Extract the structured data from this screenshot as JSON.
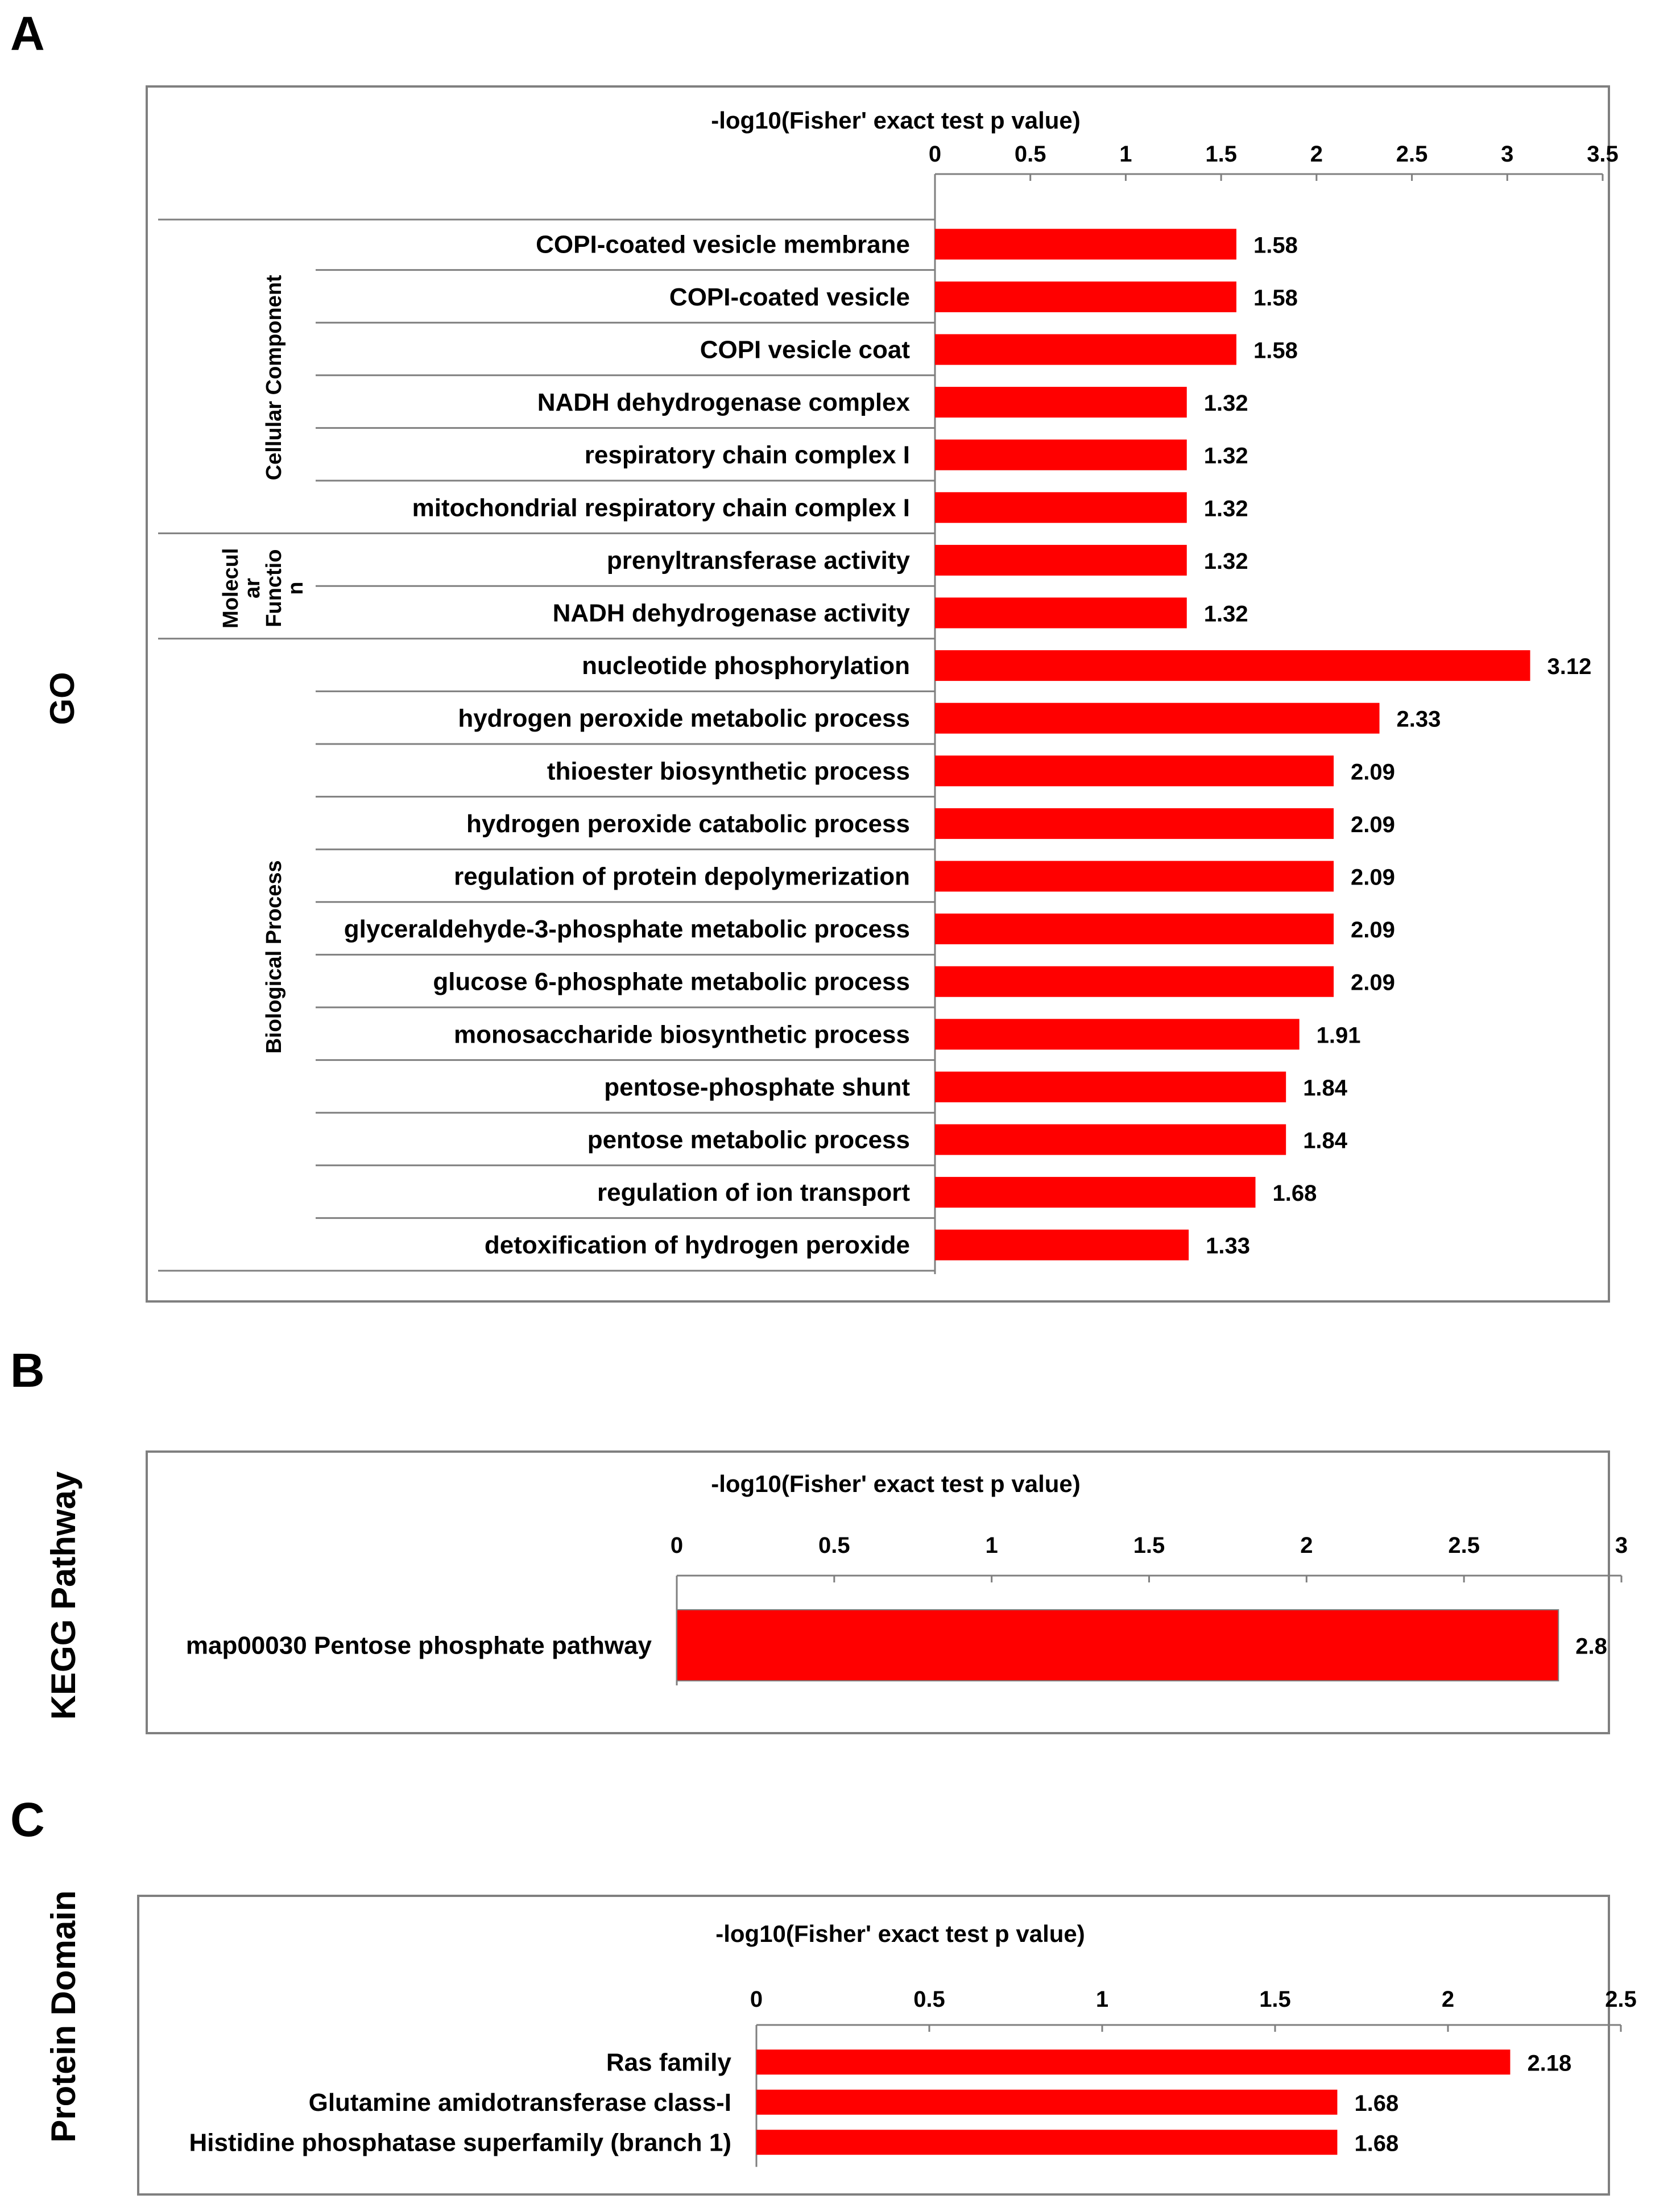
{
  "colors": {
    "bar": "#ff0000",
    "frame": "#7f7f7f",
    "axis": "#7f7f7f"
  },
  "panels": [
    {
      "letter": "A",
      "side_label": "GO",
      "axis_title": "-log10(Fisher' exact test p value)"
    },
    {
      "letter": "B",
      "side_label": "KEGG Pathway",
      "axis_title": "-log10(Fisher' exact test p value)"
    },
    {
      "letter": "C",
      "side_label": "Protein Domain",
      "axis_title": "-log10(Fisher' exact test p value)"
    }
  ],
  "chart_data": [
    {
      "type": "bar",
      "orientation": "horizontal",
      "panel": "A",
      "title": "",
      "xlabel": "-log10(Fisher' exact test p value)",
      "ylabel": "GO",
      "xlim": [
        0,
        3.5
      ],
      "xticks": [
        "0",
        "0.5",
        "1",
        "1.5",
        "2",
        "2.5",
        "3",
        "3.5"
      ],
      "groups": [
        {
          "name": "Cellular Component",
          "start": 0,
          "end": 6
        },
        {
          "name": "Molecul\nar\nFunctio\nn",
          "start": 6,
          "end": 8
        },
        {
          "name": "Biological Process",
          "start": 8,
          "end": 20
        }
      ],
      "categories": [
        "COPI-coated vesicle membrane",
        "COPI-coated vesicle",
        "COPI vesicle coat",
        "NADH dehydrogenase complex",
        "respiratory chain complex I",
        "mitochondrial respiratory chain complex I",
        "prenyltransferase activity",
        "NADH dehydrogenase activity",
        "nucleotide phosphorylation",
        "hydrogen peroxide metabolic process",
        "thioester biosynthetic process",
        "hydrogen peroxide catabolic process",
        "regulation of protein depolymerization",
        "glyceraldehyde-3-phosphate metabolic process",
        "glucose 6-phosphate metabolic process",
        "monosaccharide biosynthetic process",
        "pentose-phosphate shunt",
        "pentose metabolic process",
        "regulation of ion transport",
        "detoxification of hydrogen peroxide"
      ],
      "values": [
        1.58,
        1.58,
        1.58,
        1.32,
        1.32,
        1.32,
        1.32,
        1.32,
        3.12,
        2.33,
        2.09,
        2.09,
        2.09,
        2.09,
        2.09,
        1.91,
        1.84,
        1.84,
        1.68,
        1.33
      ],
      "value_labels": [
        "1.58",
        "1.58",
        "1.58",
        "1.32",
        "1.32",
        "1.32",
        "1.32",
        "1.32",
        "3.12",
        "2.33",
        "2.09",
        "2.09",
        "2.09",
        "2.09",
        "2.09",
        "1.91",
        "1.84",
        "1.84",
        "1.68",
        "1.33"
      ]
    },
    {
      "type": "bar",
      "orientation": "horizontal",
      "panel": "B",
      "title": "",
      "xlabel": "-log10(Fisher' exact test p value)",
      "ylabel": "KEGG Pathway",
      "xlim": [
        0,
        3
      ],
      "xticks": [
        "0",
        "0.5",
        "1",
        "1.5",
        "2",
        "2.5",
        "3"
      ],
      "categories": [
        "map00030 Pentose phosphate pathway"
      ],
      "values": [
        2.8
      ],
      "value_labels": [
        "2.8"
      ]
    },
    {
      "type": "bar",
      "orientation": "horizontal",
      "panel": "C",
      "title": "",
      "xlabel": "-log10(Fisher' exact test p value)",
      "ylabel": "Protein Domain",
      "xlim": [
        0,
        2.5
      ],
      "xticks": [
        "0",
        "0.5",
        "1",
        "1.5",
        "2",
        "2.5"
      ],
      "categories": [
        "Ras family",
        "Glutamine amidotransferase class-I",
        "Histidine phosphatase superfamily (branch 1)"
      ],
      "values": [
        2.18,
        1.68,
        1.68
      ],
      "value_labels": [
        "2.18",
        "1.68",
        "1.68"
      ]
    }
  ]
}
